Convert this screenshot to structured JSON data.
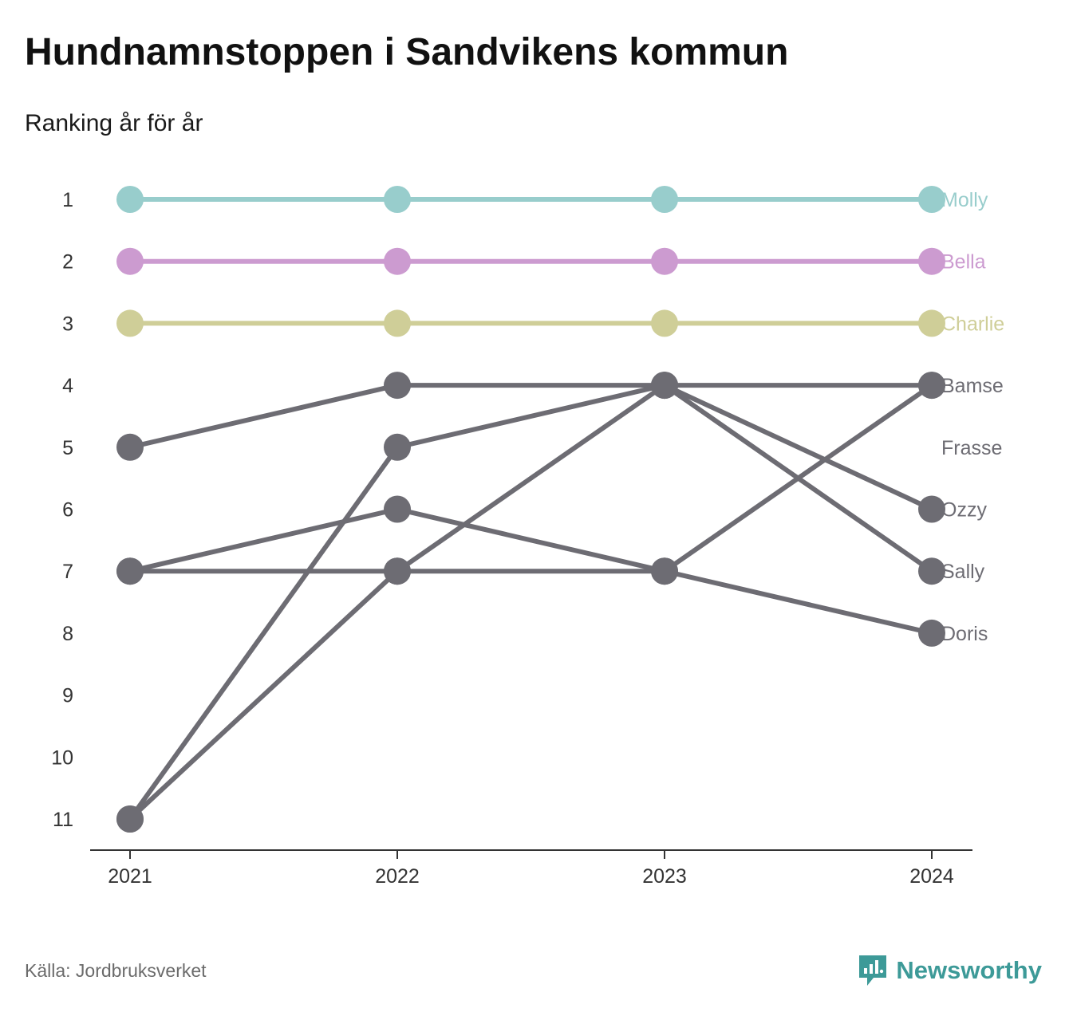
{
  "header": {
    "title": "Hundnamnstoppen i Sandvikens kommun",
    "subtitle": "Ranking år för år"
  },
  "footer": {
    "source": "Källa: Jordbruksverket",
    "brand": "Newsworthy"
  },
  "icons": {
    "brand_logo": "newsworthy-logo-icon"
  },
  "colors": {
    "molly": "#98cdcc",
    "bella": "#cc9bd0",
    "charlie": "#cfce98",
    "grey": "#6d6c73",
    "axis": "#333333",
    "brand": "#3d9a98"
  },
  "chart_data": {
    "type": "line",
    "subtype": "bump",
    "x": [
      "2021",
      "2022",
      "2023",
      "2024"
    ],
    "y_ticks": [
      "1",
      "2",
      "3",
      "4",
      "5",
      "6",
      "7",
      "8",
      "9",
      "10",
      "11"
    ],
    "ylim": [
      1,
      11
    ],
    "y_inverted": true,
    "series": [
      {
        "name": "Molly",
        "color": "#98cdcc",
        "values": [
          1,
          1,
          1,
          1
        ]
      },
      {
        "name": "Bella",
        "color": "#cc9bd0",
        "values": [
          2,
          2,
          2,
          2
        ]
      },
      {
        "name": "Charlie",
        "color": "#cfce98",
        "values": [
          3,
          3,
          3,
          3
        ]
      },
      {
        "name": "Bamse",
        "color": "#6d6c73",
        "values": [
          7,
          7,
          7,
          4
        ]
      },
      {
        "name": "Frasse",
        "color": "#6d6c73",
        "values": [
          null,
          null,
          null,
          null
        ]
      },
      {
        "name": "Ozzy",
        "color": "#6d6c73",
        "values": [
          5,
          4,
          4,
          6
        ]
      },
      {
        "name": "Sally",
        "color": "#6d6c73",
        "values": [
          11,
          5,
          4,
          7
        ]
      },
      {
        "name": "Doris",
        "color": "#6d6c73",
        "values": [
          7,
          6,
          7,
          8
        ]
      },
      {
        "name": "",
        "color": "#6d6c73",
        "values": [
          11,
          7,
          4,
          4
        ]
      }
    ],
    "legend": "right-labels",
    "grid": false
  }
}
